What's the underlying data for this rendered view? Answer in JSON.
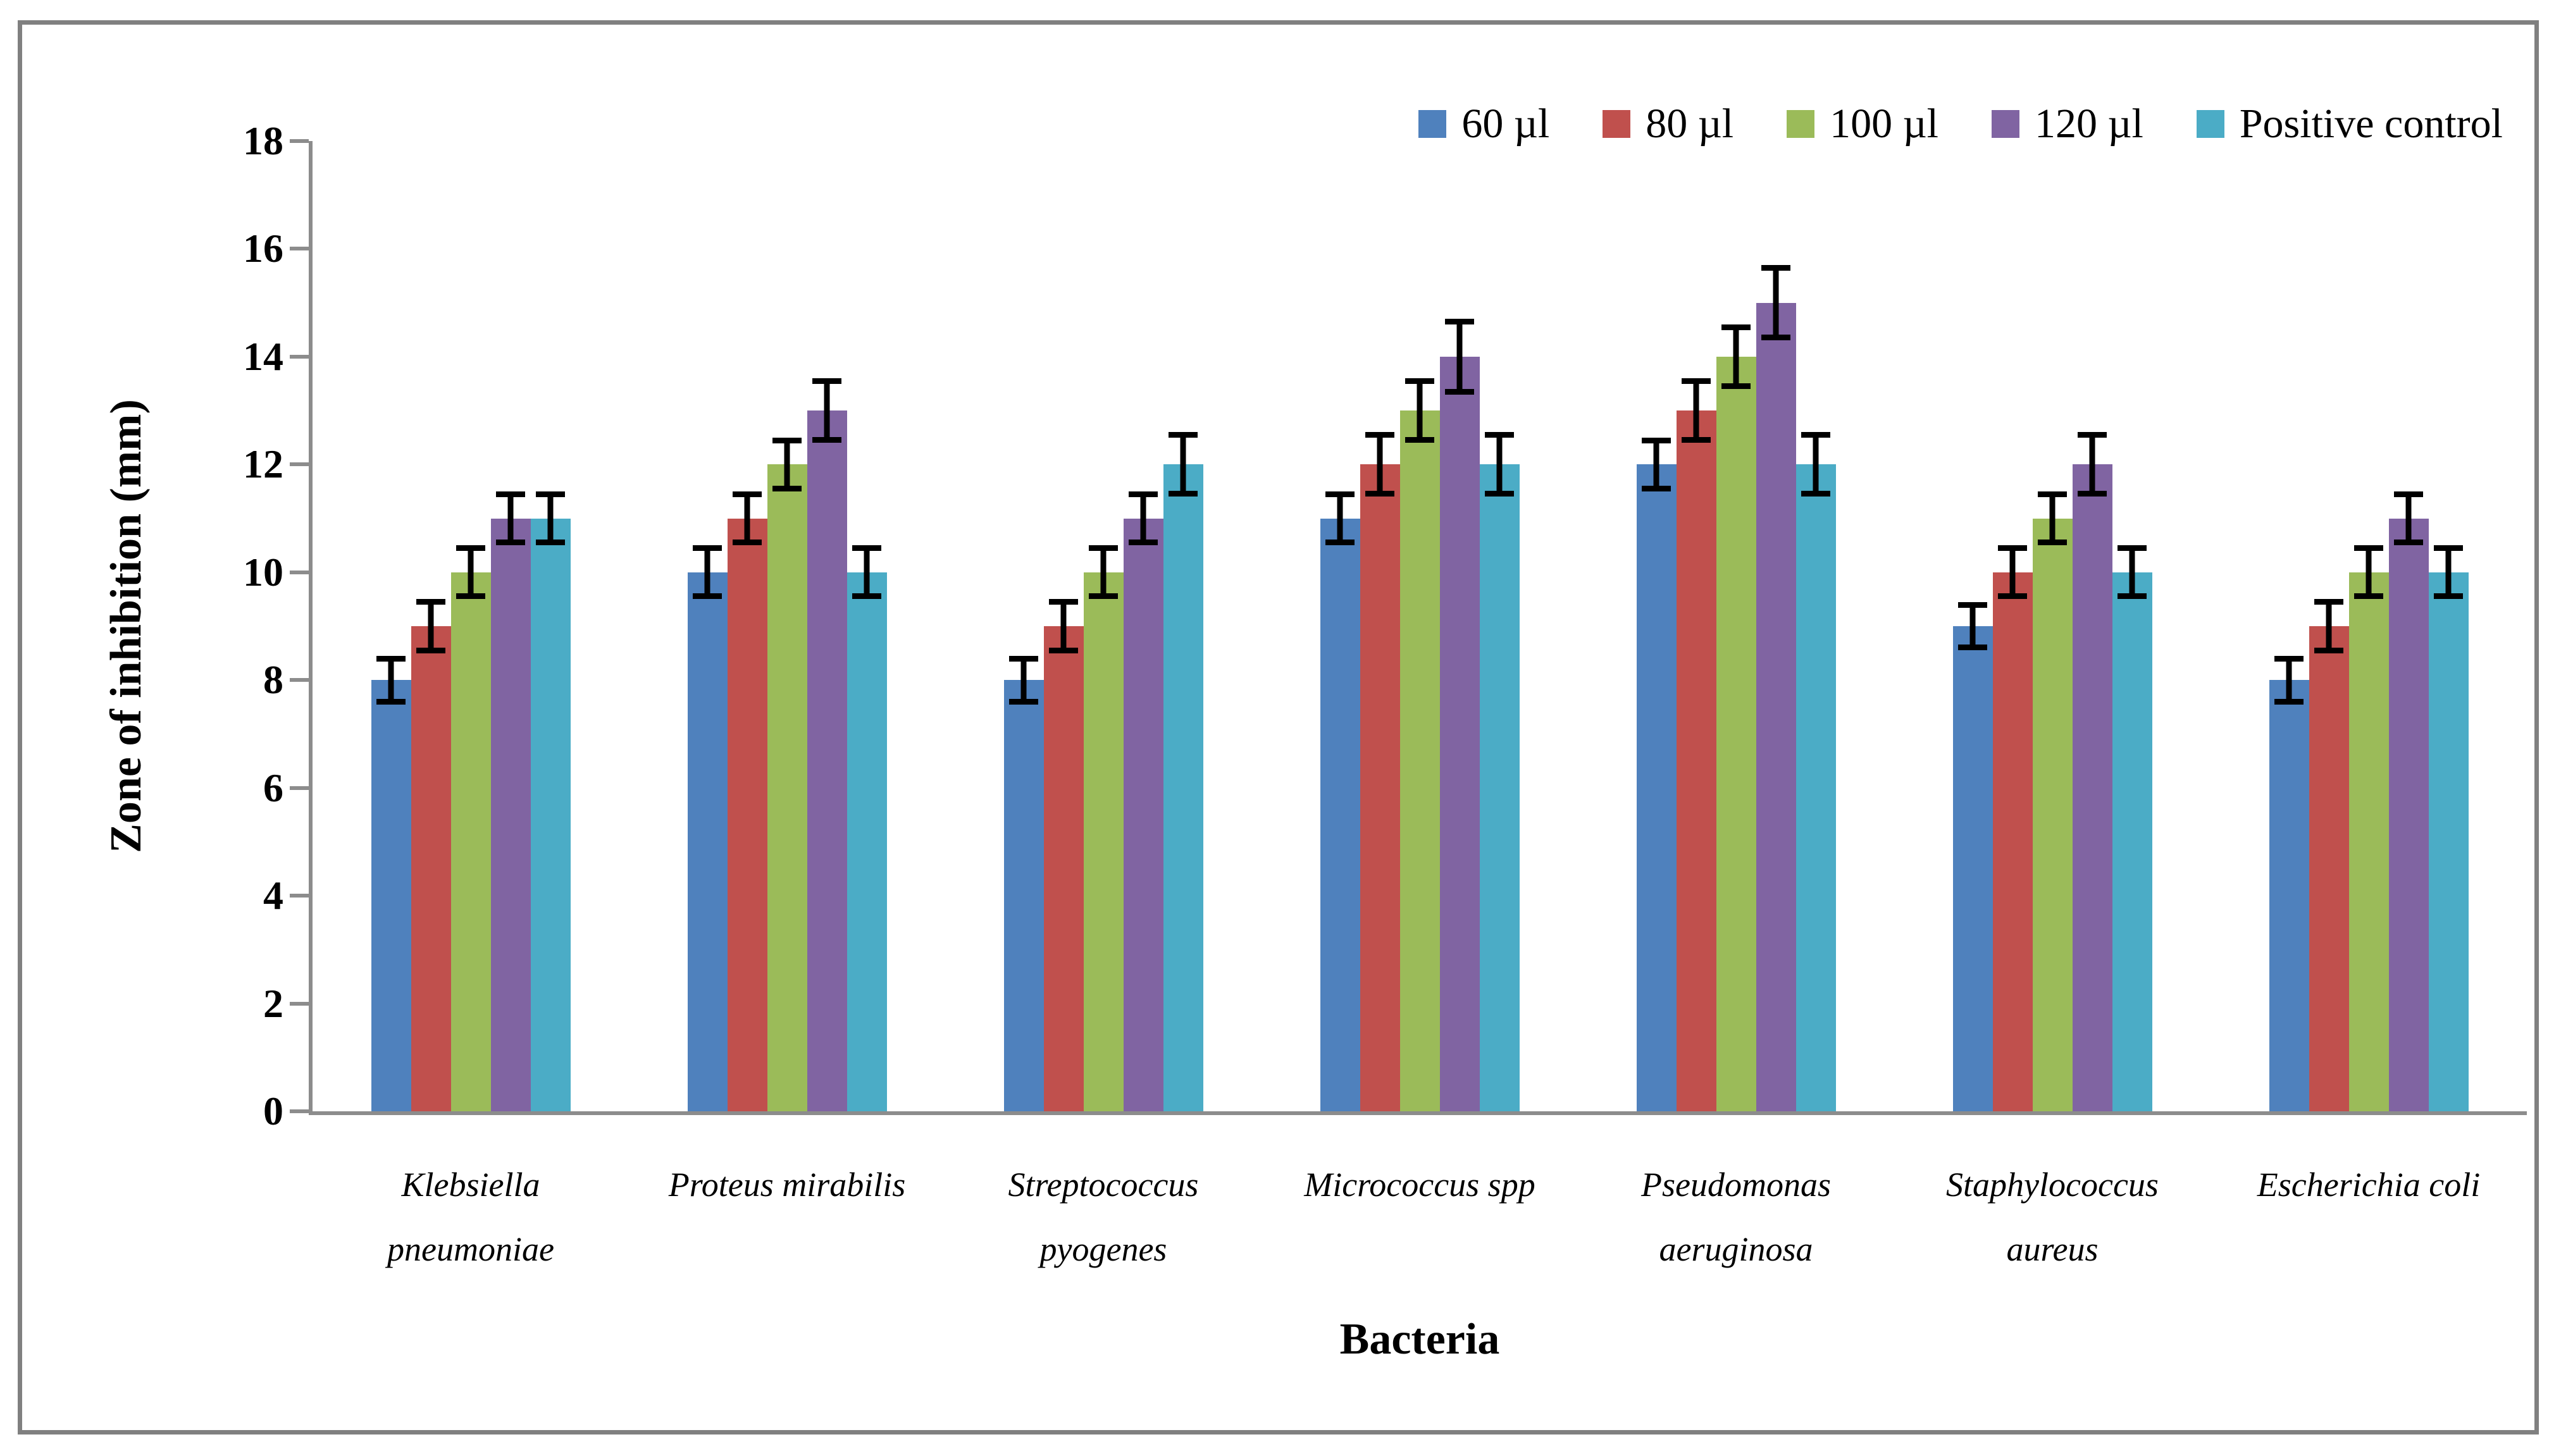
{
  "chart_data": {
    "type": "bar",
    "title": "",
    "xlabel": "Bacteria",
    "ylabel": "Zone of inhibition (mm)",
    "ylim": [
      0,
      18
    ],
    "ytick_step": 2,
    "grid": false,
    "legend_position": "top-right",
    "categories": [
      {
        "label": "Klebsiella pneumoniae",
        "lines": [
          "Klebsiella",
          "pneumoniae"
        ]
      },
      {
        "label": "Proteus mirabilis",
        "lines": [
          "Proteus mirabilis"
        ]
      },
      {
        "label": "Streptococcus pyogenes",
        "lines": [
          "Streptococcus",
          "pyogenes"
        ]
      },
      {
        "label": "Micrococcus spp",
        "lines": [
          "Micrococcus spp"
        ]
      },
      {
        "label": "Pseudomonas aeruginosa",
        "lines": [
          "Pseudomonas",
          "aeruginosa"
        ]
      },
      {
        "label": "Staphylococcus aureus",
        "lines": [
          "Staphylococcus",
          "aureus"
        ]
      },
      {
        "label": "Escherichia coli",
        "lines": [
          "Escherichia coli"
        ]
      }
    ],
    "series": [
      {
        "name": "60 µl",
        "color": "#4F81BD",
        "values": [
          8,
          10,
          8,
          11,
          12,
          9,
          8
        ],
        "errors": [
          0.45,
          0.5,
          0.45,
          0.5,
          0.5,
          0.45,
          0.45
        ]
      },
      {
        "name": "80 µl",
        "color": "#C0504D",
        "values": [
          9,
          11,
          9,
          12,
          13,
          10,
          9
        ],
        "errors": [
          0.5,
          0.5,
          0.5,
          0.6,
          0.6,
          0.5,
          0.5
        ]
      },
      {
        "name": "100 µl",
        "color": "#9BBB59",
        "values": [
          10,
          12,
          10,
          13,
          14,
          11,
          10
        ],
        "errors": [
          0.5,
          0.5,
          0.5,
          0.6,
          0.6,
          0.5,
          0.5
        ]
      },
      {
        "name": "120 µl",
        "color": "#8064A2",
        "values": [
          11,
          13,
          11,
          14,
          15,
          12,
          11
        ],
        "errors": [
          0.5,
          0.6,
          0.5,
          0.7,
          0.7,
          0.6,
          0.5
        ]
      },
      {
        "name": "Positive control",
        "color": "#4BACC6",
        "values": [
          11,
          10,
          12,
          12,
          12,
          10,
          10
        ],
        "errors": [
          0.5,
          0.5,
          0.6,
          0.6,
          0.6,
          0.5,
          0.5
        ]
      }
    ],
    "colors": {
      "axis": "#8C8C8C",
      "frame_border": "#808080",
      "error_bar": "#000000"
    }
  }
}
